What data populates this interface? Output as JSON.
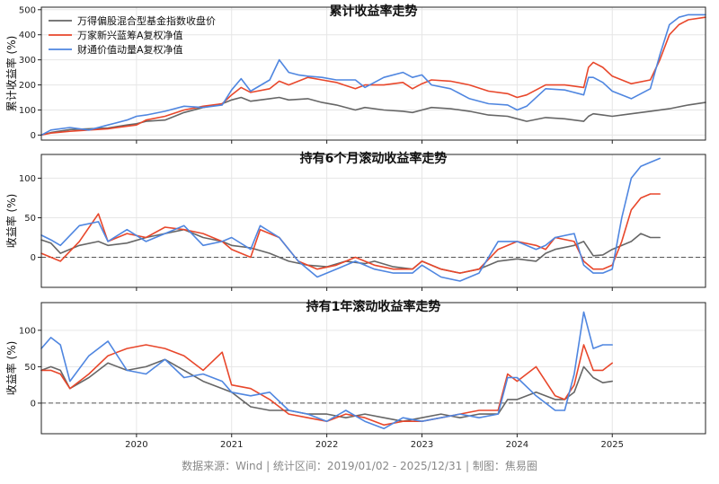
{
  "colors": {
    "index": "#666666",
    "fund_a": "#e8472b",
    "fund_b": "#4f86e0"
  },
  "legend": [
    "万得偏股混合型基金指数收盘价",
    "万家新兴蓝筹A复权净值",
    "财通价值动量A复权净值"
  ],
  "footer": "数据来源：Wind | 统计区间：2019/01/02 - 2025/12/31 | 制图：焦易圈",
  "chart_data": [
    {
      "type": "line",
      "title": "累计收益率走势",
      "ylabel": "累计收益率 (%)",
      "ylim": [
        -20,
        510
      ],
      "yticks": [
        0,
        100,
        200,
        300,
        400,
        500
      ],
      "xlim": [
        2019.0,
        2025.98
      ],
      "xticks": [
        "2020",
        "2021",
        "2022",
        "2023",
        "2024",
        "2025"
      ],
      "zero_line": false,
      "legend_position": "top-left",
      "series": [
        {
          "name": "万得偏股混合型基金指数收盘价",
          "color_key": "index",
          "x": [
            2019.0,
            2019.1,
            2019.3,
            2019.5,
            2019.7,
            2019.9,
            2020.0,
            2020.1,
            2020.3,
            2020.5,
            2020.7,
            2020.9,
            2021.0,
            2021.1,
            2021.2,
            2021.4,
            2021.5,
            2021.6,
            2021.8,
            2021.95,
            2022.1,
            2022.3,
            2022.4,
            2022.6,
            2022.8,
            2022.9,
            2023.0,
            2023.1,
            2023.3,
            2023.5,
            2023.7,
            2023.9,
            2024.0,
            2024.1,
            2024.3,
            2024.5,
            2024.7,
            2024.75,
            2024.8,
            2024.9,
            2025.0,
            2025.2,
            2025.4,
            2025.6,
            2025.8,
            2025.98
          ],
          "y": [
            0,
            10,
            22,
            25,
            28,
            40,
            45,
            55,
            60,
            90,
            110,
            125,
            140,
            150,
            135,
            145,
            150,
            140,
            145,
            130,
            120,
            100,
            110,
            100,
            95,
            90,
            100,
            110,
            105,
            95,
            80,
            75,
            65,
            55,
            70,
            65,
            55,
            75,
            85,
            80,
            75,
            85,
            95,
            105,
            120,
            130
          ]
        },
        {
          "name": "万家新兴蓝筹A复权净值",
          "color_key": "fund_a",
          "x": [
            2019.0,
            2019.1,
            2019.3,
            2019.5,
            2019.7,
            2019.9,
            2020.0,
            2020.1,
            2020.3,
            2020.5,
            2020.7,
            2020.9,
            2021.0,
            2021.1,
            2021.2,
            2021.4,
            2021.5,
            2021.6,
            2021.8,
            2021.95,
            2022.1,
            2022.3,
            2022.4,
            2022.6,
            2022.8,
            2022.9,
            2023.0,
            2023.1,
            2023.3,
            2023.5,
            2023.7,
            2023.9,
            2024.0,
            2024.1,
            2024.3,
            2024.5,
            2024.7,
            2024.75,
            2024.8,
            2024.9,
            2025.0,
            2025.2,
            2025.4,
            2025.5,
            2025.6,
            2025.7,
            2025.8,
            2025.98
          ],
          "y": [
            0,
            8,
            15,
            20,
            25,
            35,
            40,
            60,
            75,
            100,
            115,
            125,
            160,
            190,
            170,
            185,
            215,
            200,
            230,
            220,
            210,
            185,
            200,
            200,
            210,
            185,
            205,
            220,
            215,
            200,
            175,
            165,
            150,
            160,
            200,
            200,
            190,
            270,
            290,
            270,
            235,
            205,
            220,
            300,
            400,
            440,
            460,
            470
          ]
        },
        {
          "name": "财通价值动量A复权净值",
          "color_key": "fund_b",
          "x": [
            2019.0,
            2019.1,
            2019.3,
            2019.5,
            2019.7,
            2019.9,
            2020.0,
            2020.1,
            2020.3,
            2020.5,
            2020.7,
            2020.9,
            2021.0,
            2021.1,
            2021.2,
            2021.4,
            2021.5,
            2021.6,
            2021.7,
            2021.8,
            2021.95,
            2022.1,
            2022.3,
            2022.4,
            2022.6,
            2022.8,
            2022.9,
            2023.0,
            2023.1,
            2023.3,
            2023.5,
            2023.7,
            2023.9,
            2024.0,
            2024.1,
            2024.3,
            2024.5,
            2024.7,
            2024.75,
            2024.8,
            2024.9,
            2025.0,
            2025.2,
            2025.4,
            2025.5,
            2025.6,
            2025.7,
            2025.8,
            2025.98
          ],
          "y": [
            0,
            20,
            30,
            20,
            40,
            60,
            75,
            80,
            95,
            115,
            110,
            120,
            180,
            225,
            175,
            220,
            300,
            250,
            240,
            235,
            230,
            220,
            220,
            190,
            230,
            250,
            230,
            240,
            200,
            185,
            145,
            125,
            120,
            100,
            115,
            185,
            180,
            160,
            230,
            230,
            210,
            175,
            145,
            185,
            320,
            440,
            470,
            480,
            480
          ]
        }
      ]
    },
    {
      "type": "line",
      "title": "持有6个月滚动收益率走势",
      "ylabel": "收益率 (%)",
      "ylim": [
        -38,
        130
      ],
      "yticks": [
        0,
        50,
        100
      ],
      "xlim": [
        2019.0,
        2025.98
      ],
      "xticks": [
        "2020",
        "2021",
        "2022",
        "2023",
        "2024",
        "2025"
      ],
      "zero_line": true,
      "series": [
        {
          "name": "万得偏股混合型基金指数收盘价",
          "color_key": "index",
          "x": [
            2019.0,
            2019.1,
            2019.2,
            2019.4,
            2019.6,
            2019.7,
            2019.9,
            2020.1,
            2020.3,
            2020.5,
            2020.7,
            2020.9,
            2021.0,
            2021.2,
            2021.4,
            2021.6,
            2021.8,
            2022.0,
            2022.2,
            2022.4,
            2022.5,
            2022.7,
            2022.9,
            2023.0,
            2023.2,
            2023.4,
            2023.6,
            2023.8,
            2024.0,
            2024.2,
            2024.3,
            2024.4,
            2024.6,
            2024.7,
            2024.8,
            2024.9,
            2025.0,
            2025.2,
            2025.3,
            2025.4,
            2025.5
          ],
          "y": [
            22,
            18,
            5,
            15,
            20,
            15,
            18,
            25,
            30,
            35,
            25,
            20,
            15,
            12,
            5,
            -5,
            -10,
            -12,
            -5,
            -8,
            -5,
            -12,
            -15,
            -5,
            -15,
            -20,
            -15,
            -5,
            -2,
            -5,
            5,
            10,
            15,
            20,
            2,
            3,
            10,
            20,
            30,
            25,
            25
          ]
        },
        {
          "name": "万家新兴蓝筹A复权净值",
          "color_key": "fund_a",
          "x": [
            2019.0,
            2019.1,
            2019.2,
            2019.4,
            2019.6,
            2019.7,
            2019.9,
            2020.1,
            2020.3,
            2020.5,
            2020.7,
            2020.9,
            2021.0,
            2021.2,
            2021.3,
            2021.5,
            2021.7,
            2021.9,
            2022.1,
            2022.3,
            2022.5,
            2022.7,
            2022.9,
            2023.0,
            2023.2,
            2023.4,
            2023.6,
            2023.8,
            2024.0,
            2024.2,
            2024.3,
            2024.4,
            2024.6,
            2024.7,
            2024.8,
            2024.9,
            2025.0,
            2025.1,
            2025.2,
            2025.3,
            2025.4,
            2025.5
          ],
          "y": [
            5,
            0,
            -5,
            20,
            55,
            20,
            30,
            25,
            38,
            35,
            30,
            20,
            10,
            0,
            35,
            25,
            -5,
            -15,
            -10,
            0,
            -10,
            -15,
            -15,
            -5,
            -15,
            -20,
            -15,
            10,
            20,
            15,
            10,
            25,
            20,
            -5,
            -15,
            -15,
            -10,
            20,
            60,
            75,
            80,
            80
          ]
        },
        {
          "name": "财通价值动量A复权净值",
          "color_key": "fund_b",
          "x": [
            2019.0,
            2019.1,
            2019.2,
            2019.4,
            2019.6,
            2019.7,
            2019.9,
            2020.1,
            2020.3,
            2020.5,
            2020.7,
            2020.9,
            2021.0,
            2021.2,
            2021.3,
            2021.5,
            2021.7,
            2021.9,
            2022.1,
            2022.3,
            2022.5,
            2022.7,
            2022.9,
            2023.0,
            2023.2,
            2023.4,
            2023.6,
            2023.8,
            2024.0,
            2024.2,
            2024.3,
            2024.4,
            2024.6,
            2024.7,
            2024.8,
            2024.9,
            2025.0,
            2025.1,
            2025.2,
            2025.3,
            2025.4,
            2025.5
          ],
          "y": [
            28,
            22,
            15,
            40,
            45,
            20,
            35,
            20,
            30,
            40,
            15,
            20,
            25,
            10,
            40,
            25,
            -5,
            -25,
            -15,
            -5,
            -15,
            -20,
            -20,
            -10,
            -25,
            -30,
            -20,
            20,
            20,
            10,
            15,
            25,
            30,
            -10,
            -20,
            -20,
            -15,
            50,
            100,
            115,
            120,
            125
          ]
        }
      ]
    },
    {
      "type": "line",
      "title": "持有1年滚动收益率走势",
      "ylabel": "收益率 (%)",
      "ylim": [
        -42,
        138
      ],
      "yticks": [
        0,
        50,
        100
      ],
      "xlim": [
        2019.0,
        2025.98
      ],
      "xticks": [
        "2020",
        "2021",
        "2022",
        "2023",
        "2024",
        "2025"
      ],
      "zero_line": true,
      "series": [
        {
          "name": "万得偏股混合型基金指数收盘价",
          "color_key": "index",
          "x": [
            2019.0,
            2019.1,
            2019.2,
            2019.3,
            2019.5,
            2019.7,
            2019.9,
            2020.1,
            2020.3,
            2020.5,
            2020.7,
            2020.9,
            2021.0,
            2021.2,
            2021.4,
            2021.6,
            2021.8,
            2022.0,
            2022.2,
            2022.4,
            2022.6,
            2022.8,
            2023.0,
            2023.2,
            2023.4,
            2023.6,
            2023.8,
            2023.9,
            2024.0,
            2024.2,
            2024.4,
            2024.5,
            2024.6,
            2024.7,
            2024.8,
            2024.9,
            2025.0
          ],
          "y": [
            45,
            50,
            45,
            20,
            35,
            55,
            45,
            50,
            60,
            45,
            30,
            20,
            15,
            -5,
            -10,
            -10,
            -15,
            -15,
            -20,
            -15,
            -20,
            -25,
            -20,
            -15,
            -20,
            -15,
            -15,
            5,
            5,
            15,
            5,
            5,
            15,
            50,
            35,
            28,
            30
          ]
        },
        {
          "name": "万家新兴蓝筹A复权净值",
          "color_key": "fund_a",
          "x": [
            2019.0,
            2019.1,
            2019.2,
            2019.3,
            2019.5,
            2019.7,
            2019.9,
            2020.1,
            2020.3,
            2020.5,
            2020.7,
            2020.9,
            2021.0,
            2021.2,
            2021.4,
            2021.6,
            2021.8,
            2022.0,
            2022.2,
            2022.4,
            2022.6,
            2022.8,
            2023.0,
            2023.2,
            2023.4,
            2023.6,
            2023.8,
            2023.9,
            2024.0,
            2024.2,
            2024.4,
            2024.5,
            2024.6,
            2024.7,
            2024.8,
            2024.9,
            2025.0
          ],
          "y": [
            45,
            45,
            40,
            20,
            40,
            65,
            75,
            80,
            75,
            65,
            45,
            70,
            25,
            20,
            5,
            -15,
            -20,
            -25,
            -15,
            -20,
            -30,
            -25,
            -25,
            -20,
            -15,
            -10,
            -10,
            40,
            30,
            50,
            10,
            5,
            25,
            80,
            45,
            45,
            55
          ]
        },
        {
          "name": "财通价值动量A复权净值",
          "color_key": "fund_b",
          "x": [
            2019.0,
            2019.1,
            2019.2,
            2019.3,
            2019.5,
            2019.7,
            2019.9,
            2020.1,
            2020.3,
            2020.5,
            2020.7,
            2020.9,
            2021.0,
            2021.2,
            2021.4,
            2021.6,
            2021.8,
            2022.0,
            2022.2,
            2022.4,
            2022.6,
            2022.8,
            2023.0,
            2023.2,
            2023.4,
            2023.6,
            2023.8,
            2023.9,
            2024.0,
            2024.2,
            2024.4,
            2024.5,
            2024.6,
            2024.7,
            2024.8,
            2024.9,
            2025.0
          ],
          "y": [
            75,
            90,
            80,
            30,
            65,
            85,
            45,
            40,
            60,
            35,
            40,
            30,
            15,
            10,
            15,
            -10,
            -15,
            -25,
            -10,
            -25,
            -35,
            -20,
            -25,
            -20,
            -15,
            -20,
            -15,
            35,
            35,
            10,
            -10,
            -10,
            40,
            125,
            75,
            80,
            80
          ]
        }
      ]
    }
  ]
}
